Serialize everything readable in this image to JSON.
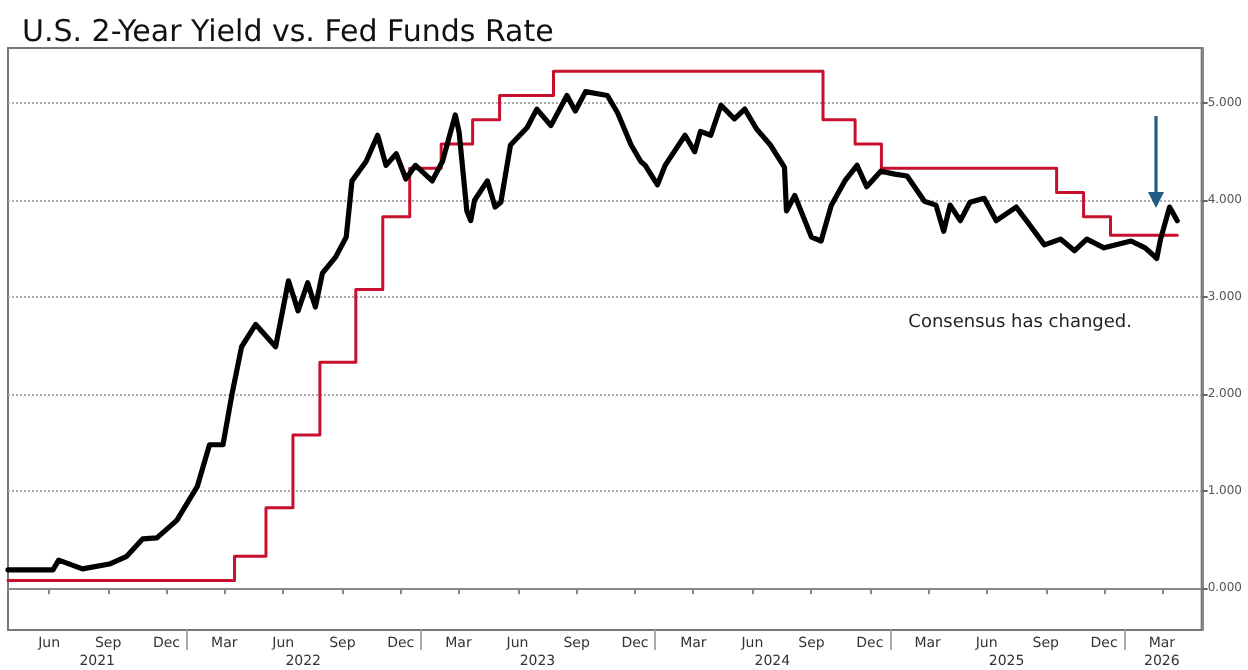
{
  "chart_data": {
    "type": "line",
    "title": "U.S. 2-Year Yield vs. Fed Funds Rate",
    "annotations": [
      "Consensus has changed."
    ],
    "xlim": [
      "2021-03-29",
      "2026-05-02"
    ],
    "xticks": [
      {
        "value": "2021-06-01",
        "label": "Jun"
      },
      {
        "value": "2021-09-01",
        "label": "Sep"
      },
      {
        "value": "2021-12-01",
        "label": "Dec"
      },
      {
        "value": "2022-03-01",
        "label": "Mar"
      },
      {
        "value": "2022-06-01",
        "label": "Jun"
      },
      {
        "value": "2022-09-01",
        "label": "Sep"
      },
      {
        "value": "2022-12-01",
        "label": "Dec"
      },
      {
        "value": "2023-03-01",
        "label": "Mar"
      },
      {
        "value": "2023-06-01",
        "label": "Jun"
      },
      {
        "value": "2023-09-01",
        "label": "Sep"
      },
      {
        "value": "2023-12-01",
        "label": "Dec"
      },
      {
        "value": "2024-03-01",
        "label": "Mar"
      },
      {
        "value": "2024-06-01",
        "label": "Jun"
      },
      {
        "value": "2024-09-01",
        "label": "Sep"
      },
      {
        "value": "2024-12-01",
        "label": "Dec"
      },
      {
        "value": "2025-03-01",
        "label": "Mar"
      },
      {
        "value": "2025-06-01",
        "label": "Jun"
      },
      {
        "value": "2025-09-01",
        "label": "Sep"
      },
      {
        "value": "2025-12-01",
        "label": "Dec"
      },
      {
        "value": "2026-03-01",
        "label": "Mar"
      }
    ],
    "x2lim": [
      "2021-03-29",
      "2026-05-02"
    ],
    "x2ticks": [
      {
        "value": "2021-08-15",
        "label": "2021"
      },
      {
        "value": "2022-01-01",
        "label": null
      },
      {
        "value": "2022-07-02",
        "label": "2022"
      },
      {
        "value": "2023-01-01",
        "label": null
      },
      {
        "value": "2023-07-02",
        "label": "2023"
      },
      {
        "value": "2024-01-01",
        "label": null
      },
      {
        "value": "2024-07-02",
        "label": "2024"
      },
      {
        "value": "2025-01-01",
        "label": null
      },
      {
        "value": "2025-07-02",
        "label": "2025"
      },
      {
        "value": "2026-01-01",
        "label": null
      },
      {
        "value": "2026-03-01",
        "label": "2026"
      }
    ],
    "ylim": [
      -0.43,
      5.57
    ],
    "yticks": [
      {
        "value": 0,
        "label": "0.000"
      },
      {
        "value": 1,
        "label": "1.000"
      },
      {
        "value": 2,
        "label": "2.000"
      },
      {
        "value": 3,
        "label": "3.000"
      },
      {
        "value": 4,
        "label": "4.000"
      },
      {
        "value": 5,
        "label": "5.000"
      }
    ],
    "grid": "y",
    "marker": "none",
    "line_style": "solid",
    "series": [
      {
        "type": "line",
        "color": "#000000",
        "x": [
          "2021-03-29",
          "2021-06-07",
          "2021-06-16",
          "2021-07-23",
          "2021-09-03",
          "2021-09-30",
          "2021-10-25",
          "2021-11-16",
          "2021-12-17",
          "2022-01-18",
          "2022-02-06",
          "2022-02-27",
          "2022-03-13",
          "2022-03-28",
          "2022-04-19",
          "2022-05-20",
          "2022-06-09",
          "2022-06-24",
          "2022-07-09",
          "2022-07-21",
          "2022-08-01",
          "2022-08-22",
          "2022-09-07",
          "2022-09-16",
          "2022-10-08",
          "2022-10-26",
          "2022-11-08",
          "2022-11-24",
          "2022-12-09",
          "2022-12-24",
          "2023-01-19",
          "2023-02-04",
          "2023-02-24",
          "2023-03-02",
          "2023-03-14",
          "2023-03-20",
          "2023-03-26",
          "2023-04-15",
          "2023-04-27",
          "2023-05-06",
          "2023-05-21",
          "2023-06-16",
          "2023-07-01",
          "2023-07-23",
          "2023-08-17",
          "2023-08-30",
          "2023-09-15",
          "2023-10-19",
          "2023-11-04",
          "2023-11-25",
          "2023-12-10",
          "2023-12-17",
          "2024-01-05",
          "2024-01-17",
          "2024-02-17",
          "2024-03-03",
          "2024-03-12",
          "2024-03-28",
          "2024-04-13",
          "2024-05-04",
          "2024-05-20",
          "2024-06-08",
          "2024-06-29",
          "2024-07-21",
          "2024-07-24",
          "2024-08-06",
          "2024-09-01",
          "2024-09-16",
          "2024-10-02",
          "2024-10-23",
          "2024-11-11",
          "2024-11-26",
          "2024-12-18",
          "2025-01-09",
          "2025-01-28",
          "2025-02-24",
          "2025-03-14",
          "2025-03-26",
          "2025-04-05",
          "2025-04-21",
          "2025-05-06",
          "2025-05-28",
          "2025-06-16",
          "2025-07-17",
          "2025-08-02",
          "2025-08-30",
          "2025-09-24",
          "2025-10-16",
          "2025-11-04",
          "2025-12-01",
          "2026-01-12",
          "2026-02-03",
          "2026-02-18",
          "2026-02-21",
          "2026-02-27",
          "2026-03-13",
          "2026-03-25"
        ],
        "values": [
          0.19,
          0.19,
          0.29,
          0.2,
          0.25,
          0.33,
          0.51,
          0.52,
          0.7,
          1.05,
          1.48,
          1.48,
          2.0,
          2.49,
          2.72,
          2.49,
          3.17,
          2.86,
          3.15,
          2.9,
          3.25,
          3.42,
          3.62,
          4.2,
          4.4,
          4.67,
          4.36,
          4.48,
          4.22,
          4.36,
          4.2,
          4.4,
          4.88,
          4.7,
          3.89,
          3.79,
          4.0,
          4.2,
          3.93,
          3.98,
          4.57,
          4.75,
          4.94,
          4.77,
          5.08,
          4.92,
          5.12,
          5.08,
          4.9,
          4.57,
          4.4,
          4.36,
          4.16,
          4.36,
          4.67,
          4.5,
          4.71,
          4.67,
          4.98,
          4.84,
          4.94,
          4.73,
          4.57,
          4.34,
          3.89,
          4.05,
          3.62,
          3.58,
          3.95,
          4.2,
          4.36,
          4.14,
          4.3,
          4.27,
          4.25,
          3.99,
          3.95,
          3.68,
          3.95,
          3.79,
          3.98,
          4.02,
          3.79,
          3.93,
          3.79,
          3.54,
          3.6,
          3.48,
          3.6,
          3.51,
          3.58,
          3.51,
          3.42,
          3.4,
          3.6,
          3.93,
          3.79
        ]
      },
      {
        "type": "step",
        "color": "#c8102e",
        "x": [
          "2021-03-29",
          "2022-03-17",
          "2022-05-05",
          "2022-06-16",
          "2022-07-28",
          "2022-09-22",
          "2022-11-03",
          "2022-12-15",
          "2023-02-02",
          "2023-03-23",
          "2023-05-04",
          "2023-07-27",
          "2024-09-19",
          "2024-11-08",
          "2024-12-19",
          "2025-09-18",
          "2025-10-30",
          "2025-12-11",
          "2026-03-25"
        ],
        "values": [
          0.08,
          0.33,
          0.83,
          1.58,
          2.33,
          3.08,
          3.83,
          4.33,
          4.58,
          4.83,
          5.08,
          5.33,
          4.83,
          4.58,
          4.33,
          4.08,
          3.83,
          3.64,
          3.64
        ]
      }
    ]
  }
}
